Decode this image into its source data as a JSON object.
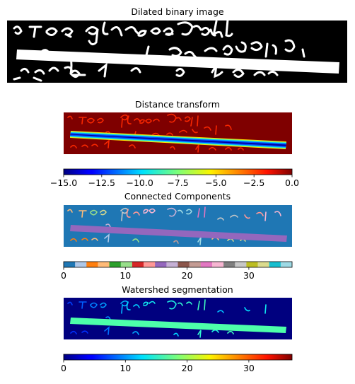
{
  "chart_data": [
    {
      "type": "image",
      "title": "Dilated binary image",
      "colormap": "gray"
    },
    {
      "type": "heatmap",
      "title": "Distance transform",
      "colormap": "jet",
      "colorbar": {
        "range": [
          -15.0,
          0.0
        ],
        "ticks": [
          -15.0,
          -12.5,
          -10.0,
          -7.5,
          -5.0,
          -2.5,
          0.0
        ],
        "tick_labels": [
          "−15.0",
          "−12.5",
          "−10.0",
          "−7.5",
          "−5.0",
          "−2.5",
          "0.0"
        ]
      }
    },
    {
      "type": "heatmap",
      "title": "Connected Components",
      "colormap": "tab20",
      "colorbar": {
        "range": [
          0,
          37
        ],
        "ticks": [
          0,
          10,
          20,
          30
        ],
        "tick_labels": [
          "0",
          "10",
          "20",
          "30"
        ],
        "discrete_colors": [
          "#1f77b4",
          "#aec7e8",
          "#ff7f0e",
          "#ffbb78",
          "#2ca02c",
          "#98df8a",
          "#d62728",
          "#ff9896",
          "#9467bd",
          "#c5b0d5",
          "#8c564b",
          "#c49c94",
          "#e377c2",
          "#f7b6d2",
          "#7f7f7f",
          "#c7c7c7",
          "#bcbd22",
          "#dbdb8d",
          "#17becf",
          "#9edae5"
        ]
      }
    },
    {
      "type": "heatmap",
      "title": "Watershed segmentation",
      "colormap": "jet",
      "colorbar": {
        "range": [
          0,
          37
        ],
        "ticks": [
          0,
          10,
          20,
          30
        ],
        "tick_labels": [
          "0",
          "10",
          "20",
          "30"
        ]
      }
    }
  ]
}
